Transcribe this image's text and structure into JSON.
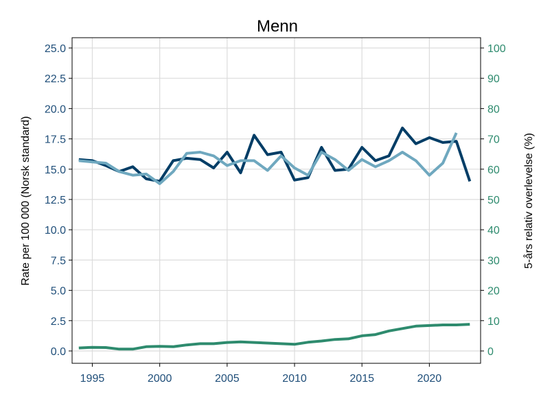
{
  "chart_data": {
    "type": "line",
    "title": "Menn",
    "ylabel": "Rate per 100 000 (Norsk standard)",
    "y2label": "5-års relativ overlevelse (%)",
    "x": [
      1994,
      1995,
      1996,
      1997,
      1998,
      1999,
      2000,
      2001,
      2002,
      2003,
      2004,
      2005,
      2006,
      2007,
      2008,
      2009,
      2010,
      2011,
      2012,
      2013,
      2014,
      2015,
      2016,
      2017,
      2018,
      2019,
      2020,
      2021,
      2022,
      2023
    ],
    "xlim": [
      1993.5,
      2023.8
    ],
    "xticks": [
      "1995",
      "2000",
      "2005",
      "2010",
      "2015",
      "2020"
    ],
    "ylim": [
      0,
      25.5
    ],
    "yticks": [
      "0.0",
      "2.5",
      "5.0",
      "7.5",
      "10.0",
      "12.5",
      "15.0",
      "17.5",
      "20.0",
      "22.5",
      "25.0"
    ],
    "y2lim": [
      0,
      102
    ],
    "y2ticks": [
      "0",
      "10",
      "20",
      "30",
      "40",
      "50",
      "60",
      "70",
      "80",
      "90",
      "100"
    ],
    "grid": true,
    "series": [
      {
        "axis": "left",
        "color": "#003d66",
        "values": [
          15.8,
          15.7,
          15.3,
          14.8,
          15.2,
          14.2,
          14.0,
          15.7,
          15.9,
          15.8,
          15.1,
          16.4,
          14.7,
          17.8,
          16.2,
          16.4,
          14.1,
          14.3,
          16.8,
          14.9,
          15.0,
          16.8,
          15.7,
          16.1,
          18.4,
          17.1,
          17.6,
          17.2,
          17.3,
          14.0
        ]
      },
      {
        "axis": "left",
        "color": "#6fa8bf",
        "values": [
          15.7,
          15.6,
          15.5,
          14.8,
          14.5,
          14.6,
          13.8,
          14.8,
          16.3,
          16.4,
          16.1,
          15.3,
          15.7,
          15.7,
          14.9,
          16.1,
          15.1,
          14.5,
          16.4,
          15.8,
          14.9,
          15.8,
          15.2,
          15.7,
          16.4,
          15.7,
          14.5,
          15.5,
          18.0,
          null
        ]
      },
      {
        "axis": "left",
        "color": "#2e8b6e",
        "values": [
          0.25,
          0.3,
          0.28,
          0.15,
          0.15,
          0.35,
          0.38,
          0.35,
          0.5,
          0.6,
          0.6,
          0.7,
          0.75,
          0.7,
          0.65,
          0.6,
          0.55,
          0.72,
          0.82,
          0.95,
          1.0,
          1.25,
          1.35,
          1.65,
          1.85,
          2.05,
          2.1,
          2.15,
          2.15,
          2.2
        ]
      }
    ]
  }
}
